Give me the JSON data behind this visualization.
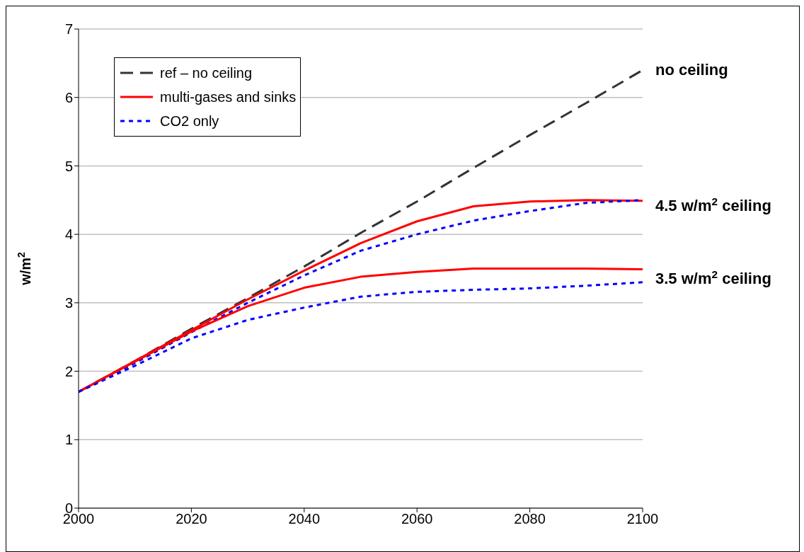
{
  "chart_data": {
    "type": "line",
    "ylabel": "w/m$^{2}$",
    "x": [
      2000,
      2010,
      2020,
      2030,
      2040,
      2050,
      2060,
      2070,
      2080,
      2090,
      2100
    ],
    "series": [
      {
        "name": "ref – no ceiling",
        "color": "#333333",
        "line_style": "dashed",
        "values": [
          1.7,
          2.15,
          2.62,
          3.07,
          3.53,
          4.02,
          4.48,
          4.97,
          5.45,
          5.92,
          6.4
        ]
      },
      {
        "name": "multi-gases and sinks",
        "color": "#ff0000",
        "line_style": "solid",
        "values": [
          1.7,
          2.15,
          2.6,
          3.05,
          3.47,
          3.87,
          4.19,
          4.41,
          4.48,
          4.5,
          4.49
        ]
      },
      {
        "name": "CO2 only",
        "color": "#0000ff",
        "line_style": "dotted",
        "values": [
          1.7,
          2.12,
          2.57,
          3.0,
          3.4,
          3.76,
          4.0,
          4.2,
          4.34,
          4.46,
          4.5
        ]
      },
      {
        "color": "#ff0000",
        "line_style": "solid",
        "values": [
          1.7,
          2.14,
          2.58,
          2.95,
          3.22,
          3.38,
          3.45,
          3.5,
          3.5,
          3.5,
          3.49
        ]
      },
      {
        "color": "#0000ff",
        "line_style": "dotted",
        "values": [
          1.7,
          2.08,
          2.48,
          2.75,
          2.93,
          3.09,
          3.16,
          3.19,
          3.21,
          3.25,
          3.3
        ]
      }
    ],
    "annotations": [
      "no ceiling",
      "4.5 w/m$^{2}$ ceiling",
      "3.5 w/m$^{2}$ ceiling"
    ],
    "xlim": [
      2000,
      2100
    ],
    "xticks": [
      2000,
      2020,
      2040,
      2060,
      2080,
      2100
    ],
    "ylim": [
      0,
      7
    ],
    "yticks": [
      0,
      1,
      2,
      3,
      4,
      5,
      6,
      7
    ],
    "grid": "y",
    "legend": "top left",
    "marker": "none"
  }
}
